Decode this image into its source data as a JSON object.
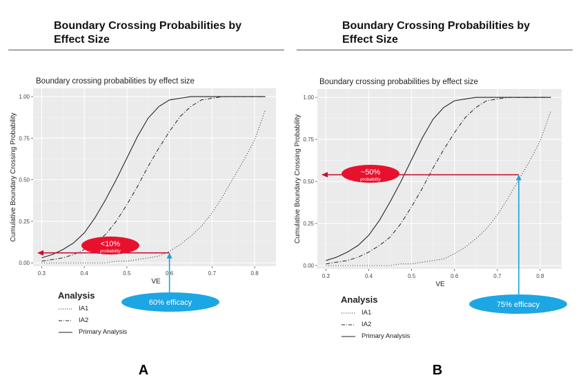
{
  "panels": [
    {
      "heading": "Boundary Crossing Probabilities by Effect Size",
      "letter": "A",
      "callout_probability": "<10%",
      "callout_sub": "probability",
      "callout_efficacy": "60% efficacy"
    },
    {
      "heading": "Boundary Crossing Probabilities by Effect Size",
      "letter": "B",
      "callout_probability": "~50%",
      "callout_sub": "probability",
      "callout_efficacy": "75% efficacy"
    }
  ],
  "legend": {
    "title": "Analysis",
    "items": [
      "IA1",
      "IA2",
      "Primary Analysis"
    ]
  },
  "colors": {
    "plot_bg": "#ebebeb",
    "grid_major": "#ffffff",
    "line": "#222222",
    "arrow_red": "#c8102e",
    "callout_red": "#e8112d",
    "arrow_blue": "#1aa0de",
    "callout_blue": "#1ca6e4"
  },
  "chart_data": [
    {
      "type": "line",
      "title": "Boundary crossing probabilities by effect size",
      "xlabel": "VE",
      "ylabel": "Cumulative Boundary Crossing Probability",
      "xlim": [
        0.28,
        0.85
      ],
      "ylim": [
        -0.02,
        1.05
      ],
      "xticks": [
        "0.3",
        "0.4",
        "0.5",
        "0.6",
        "0.7",
        "0.8"
      ],
      "yticks": [
        "0.00",
        "0.25",
        "0.50",
        "0.75",
        "1.00"
      ],
      "grid": true,
      "legend_position": "bottom-left",
      "x": [
        0.3,
        0.325,
        0.35,
        0.375,
        0.4,
        0.425,
        0.45,
        0.475,
        0.5,
        0.525,
        0.55,
        0.575,
        0.6,
        0.625,
        0.65,
        0.675,
        0.7,
        0.725,
        0.75,
        0.775,
        0.8,
        0.825
      ],
      "series": [
        {
          "name": "IA1",
          "style": "dotted",
          "values": [
            0.0,
            0.0,
            0.0,
            0.0,
            0.0,
            0.0,
            0.0,
            0.01,
            0.01,
            0.02,
            0.03,
            0.04,
            0.07,
            0.11,
            0.16,
            0.22,
            0.3,
            0.4,
            0.51,
            0.62,
            0.74,
            0.92
          ]
        },
        {
          "name": "IA2",
          "style": "dashdot",
          "values": [
            0.01,
            0.02,
            0.03,
            0.05,
            0.08,
            0.12,
            0.17,
            0.25,
            0.35,
            0.46,
            0.58,
            0.69,
            0.79,
            0.88,
            0.94,
            0.98,
            0.99,
            1.0,
            1.0,
            1.0,
            1.0,
            1.0
          ]
        },
        {
          "name": "Primary Analysis",
          "style": "solid",
          "values": [
            0.03,
            0.05,
            0.08,
            0.12,
            0.18,
            0.27,
            0.38,
            0.5,
            0.63,
            0.76,
            0.87,
            0.94,
            0.98,
            0.99,
            1.0,
            1.0,
            1.0,
            1.0,
            1.0,
            1.0,
            1.0,
            1.0
          ]
        }
      ],
      "annotations": [
        {
          "type": "horizontal-arrow",
          "y": 0.06,
          "from_x": 0.6
        },
        {
          "type": "vertical-arrow",
          "x": 0.6,
          "to_y": 0.06
        }
      ]
    },
    {
      "type": "line",
      "title": "Boundary crossing probabilities by effect size",
      "xlabel": "VE",
      "ylabel": "Cumulative Boundary Crossing Probability",
      "xlim": [
        0.28,
        0.85
      ],
      "ylim": [
        -0.02,
        1.05
      ],
      "xticks": [
        "0.3",
        "0.4",
        "0.5",
        "0.6",
        "0.7",
        "0.8"
      ],
      "yticks": [
        "0.00",
        "0.25",
        "0.50",
        "0.75",
        "1.00"
      ],
      "grid": true,
      "legend_position": "bottom-left",
      "x": [
        0.3,
        0.325,
        0.35,
        0.375,
        0.4,
        0.425,
        0.45,
        0.475,
        0.5,
        0.525,
        0.55,
        0.575,
        0.6,
        0.625,
        0.65,
        0.675,
        0.7,
        0.725,
        0.75,
        0.775,
        0.8,
        0.825
      ],
      "series": [
        {
          "name": "IA1",
          "style": "dotted",
          "values": [
            0.0,
            0.0,
            0.0,
            0.0,
            0.0,
            0.0,
            0.0,
            0.01,
            0.01,
            0.02,
            0.03,
            0.04,
            0.07,
            0.11,
            0.16,
            0.22,
            0.3,
            0.4,
            0.51,
            0.62,
            0.74,
            0.92
          ]
        },
        {
          "name": "IA2",
          "style": "dashdot",
          "values": [
            0.01,
            0.02,
            0.03,
            0.05,
            0.08,
            0.12,
            0.17,
            0.25,
            0.35,
            0.46,
            0.58,
            0.69,
            0.79,
            0.88,
            0.94,
            0.98,
            0.99,
            1.0,
            1.0,
            1.0,
            1.0,
            1.0
          ]
        },
        {
          "name": "Primary Analysis",
          "style": "solid",
          "values": [
            0.03,
            0.05,
            0.08,
            0.12,
            0.18,
            0.27,
            0.38,
            0.5,
            0.63,
            0.76,
            0.87,
            0.94,
            0.98,
            0.99,
            1.0,
            1.0,
            1.0,
            1.0,
            1.0,
            1.0,
            1.0,
            1.0
          ]
        }
      ],
      "annotations": [
        {
          "type": "horizontal-arrow",
          "y": 0.54,
          "from_x": 0.75
        },
        {
          "type": "vertical-arrow",
          "x": 0.75,
          "to_y": 0.54
        }
      ]
    }
  ]
}
